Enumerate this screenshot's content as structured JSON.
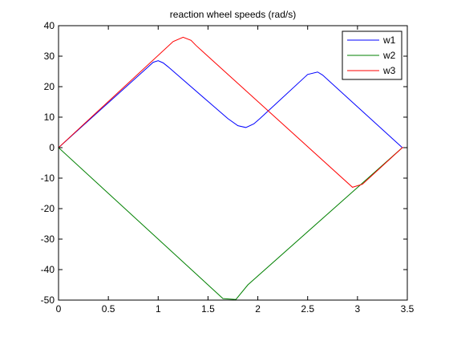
{
  "chart_data": {
    "type": "line",
    "title": "reaction wheel speeds (rad/s)",
    "xlabel": "",
    "ylabel": "",
    "xlim": [
      0,
      3.5
    ],
    "ylim": [
      -50,
      40
    ],
    "xticks": [
      0,
      0.5,
      1,
      1.5,
      2,
      2.5,
      3,
      3.5
    ],
    "xtick_labels": [
      "0",
      "0.5",
      "1",
      "1.5",
      "2",
      "2.5",
      "3",
      "3.5"
    ],
    "yticks": [
      -50,
      -40,
      -30,
      -20,
      -10,
      0,
      10,
      20,
      30,
      40
    ],
    "ytick_labels": [
      "-50",
      "-40",
      "-30",
      "-20",
      "-10",
      "0",
      "10",
      "20",
      "30",
      "40"
    ],
    "grid": false,
    "legend_position": "top-right",
    "series": [
      {
        "name": "w1",
        "color": "#0000ff",
        "points": [
          [
            0,
            0
          ],
          [
            0.9,
            26.5
          ],
          [
            0.95,
            28
          ],
          [
            1.0,
            28.5
          ],
          [
            1.05,
            27.8
          ],
          [
            1.1,
            26.5
          ],
          [
            1.7,
            9.5
          ],
          [
            1.8,
            7.2
          ],
          [
            1.88,
            6.6
          ],
          [
            1.96,
            7.8
          ],
          [
            2.02,
            9.5
          ],
          [
            2.5,
            24
          ],
          [
            2.6,
            24.8
          ],
          [
            2.65,
            23.8
          ],
          [
            3.45,
            0
          ],
          [
            3.5,
            0
          ]
        ]
      },
      {
        "name": "w2",
        "color": "#008000",
        "points": [
          [
            0,
            0
          ],
          [
            1.65,
            -49.5
          ],
          [
            1.78,
            -49.8
          ],
          [
            1.9,
            -45
          ],
          [
            3.45,
            0
          ],
          [
            3.5,
            0
          ]
        ]
      },
      {
        "name": "w3",
        "color": "#ff0000",
        "points": [
          [
            0,
            0
          ],
          [
            1.15,
            34.8
          ],
          [
            1.25,
            36.2
          ],
          [
            1.33,
            35.2
          ],
          [
            1.38,
            33.5
          ],
          [
            2.95,
            -13
          ],
          [
            3.05,
            -12
          ],
          [
            3.45,
            0
          ],
          [
            3.5,
            0
          ]
        ]
      }
    ]
  }
}
